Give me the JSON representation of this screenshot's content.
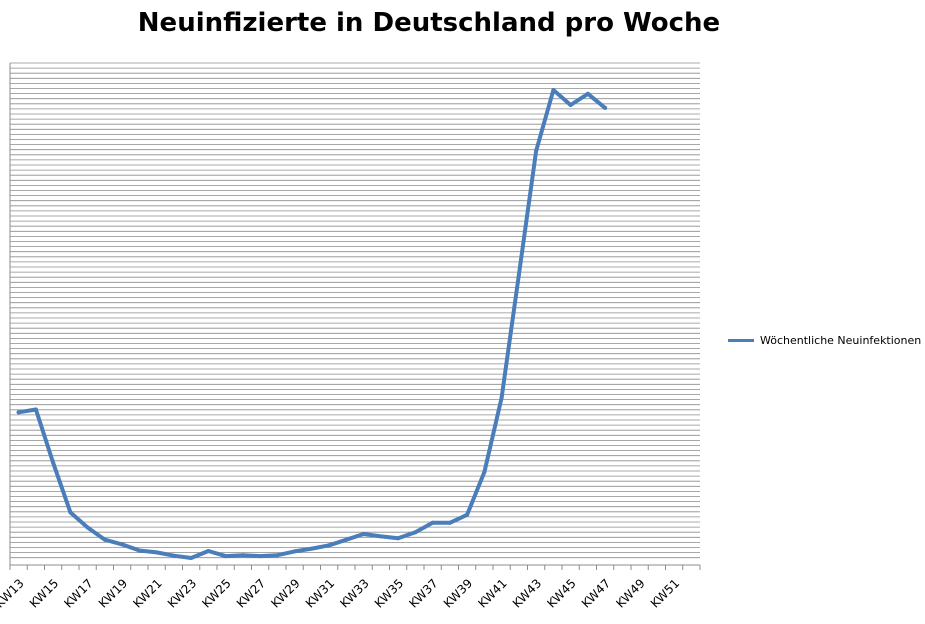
{
  "chart_data": {
    "type": "line",
    "title": "Neuinfizierte in Deutschland pro Woche",
    "xlabel": "",
    "ylabel": "",
    "grid": true,
    "legend_position": "right",
    "categories": [
      "KW13",
      "KW14",
      "KW15",
      "KW16",
      "KW17",
      "KW18",
      "KW19",
      "KW20",
      "KW21",
      "KW22",
      "KW23",
      "KW24",
      "KW25",
      "KW26",
      "KW27",
      "KW28",
      "KW29",
      "KW30",
      "KW31",
      "KW32",
      "KW33",
      "KW34",
      "KW35",
      "KW36",
      "KW37",
      "KW38",
      "KW39",
      "KW40",
      "KW41",
      "KW42",
      "KW43",
      "KW44",
      "KW45",
      "KW46",
      "KW47",
      "KW48",
      "KW49",
      "KW50",
      "KW51",
      "KW52"
    ],
    "tick_labels": [
      "KW13",
      "KW15",
      "KW17",
      "KW19",
      "KW21",
      "KW23",
      "KW25",
      "KW27",
      "KW29",
      "KW31",
      "KW33",
      "KW35",
      "KW37",
      "KW39",
      "KW41",
      "KW43",
      "KW45",
      "KW47",
      "KW49",
      "KW51"
    ],
    "series": [
      {
        "name": "Wöchentliche Neuinfektionen",
        "color": "#4a7ebb",
        "values": [
          0.275,
          0.281,
          0.168,
          0.062,
          0.03,
          0.004,
          -0.006,
          -0.019,
          -0.023,
          -0.03,
          -0.035,
          -0.02,
          -0.031,
          -0.029,
          -0.031,
          -0.029,
          -0.021,
          -0.015,
          -0.008,
          0.004,
          0.016,
          0.011,
          0.007,
          0.02,
          0.04,
          0.04,
          0.057,
          0.148,
          0.306,
          0.568,
          0.831,
          0.961,
          0.929,
          0.953,
          0.923,
          null,
          null,
          null,
          null,
          null
        ]
      }
    ],
    "ylim": [
      -0.035,
      0.961
    ]
  }
}
